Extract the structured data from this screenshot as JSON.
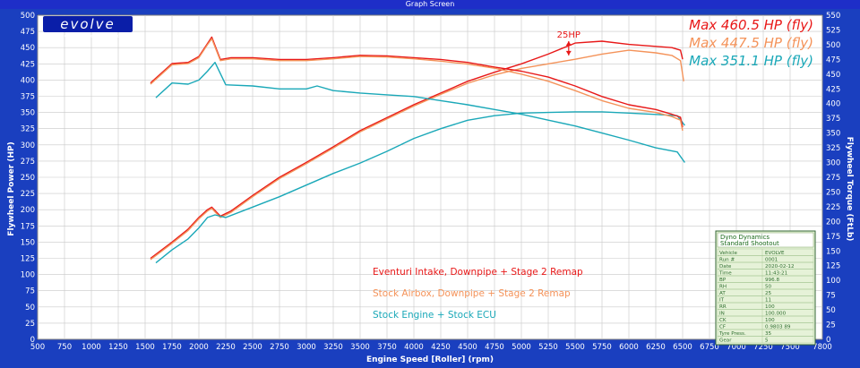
{
  "window": {
    "title": "Graph Screen"
  },
  "logo": {
    "brand": "evolve",
    "url": "www.evolveautomotive.com"
  },
  "chart_data": {
    "type": "line",
    "title": "",
    "xlabel": "Engine Speed [Roller] (rpm)",
    "ylabel": "Flywheel Power (HP)",
    "y2label": "Flywheel Torque (FtLb)",
    "xlim": [
      500,
      7800
    ],
    "ylim": [
      0,
      500
    ],
    "y2lim": [
      0,
      550
    ],
    "x_ticks": [
      500,
      750,
      1000,
      1250,
      1500,
      1750,
      2000,
      2250,
      2500,
      2750,
      3000,
      3250,
      3500,
      3750,
      4000,
      4250,
      4500,
      4750,
      5000,
      5250,
      5500,
      5750,
      6000,
      6250,
      6500,
      6750,
      7000,
      7250,
      7500,
      7800
    ],
    "y_ticks": [
      0,
      25,
      50,
      75,
      100,
      125,
      150,
      175,
      200,
      225,
      250,
      275,
      300,
      325,
      350,
      375,
      400,
      425,
      450,
      475,
      500
    ],
    "y2_ticks": [
      0,
      25,
      50,
      75,
      100,
      125,
      150,
      175,
      200,
      225,
      250,
      275,
      300,
      325,
      350,
      375,
      400,
      425,
      450,
      475,
      500,
      525,
      550
    ],
    "grid": true,
    "legend_position": "bottom-center",
    "max_labels": [
      {
        "text": "Max 460.5 HP (fly)",
        "color": "#e81818"
      },
      {
        "text": "Max 447.5 HP (fly)",
        "color": "#f4935a"
      },
      {
        "text": "Max 351.1 HP (fly)",
        "color": "#1aa8b8"
      }
    ],
    "annotation": {
      "text": "25HP",
      "x": 5440,
      "y_top": 460,
      "y_bottom": 438
    },
    "series": [
      {
        "name": "Eventuri Intake, Downpipe + Stage 2 Remap",
        "color": "#e81818",
        "metric": "power",
        "x": [
          1550,
          1750,
          1900,
          2000,
          2080,
          2120,
          2200,
          2300,
          2500,
          2750,
          3000,
          3250,
          3500,
          3750,
          4000,
          4250,
          4500,
          4750,
          5000,
          5250,
          5500,
          5750,
          6000,
          6250,
          6400,
          6480,
          6500
        ],
        "y": [
          125,
          150,
          170,
          188,
          200,
          204,
          190,
          198,
          222,
          250,
          273,
          297,
          322,
          342,
          362,
          380,
          398,
          412,
          425,
          440,
          457,
          460,
          455,
          452,
          450,
          446,
          432
        ]
      },
      {
        "name": "Stock Airbox, Downpipe + Stage 2 Remap",
        "color": "#f4935a",
        "metric": "power",
        "x": [
          1550,
          1750,
          1900,
          2000,
          2080,
          2120,
          2200,
          2300,
          2500,
          2750,
          3000,
          3250,
          3500,
          3750,
          4000,
          4250,
          4500,
          4750,
          5000,
          5250,
          5500,
          5750,
          6000,
          6250,
          6400,
          6480,
          6510
        ],
        "y": [
          123,
          148,
          168,
          186,
          198,
          202,
          188,
          196,
          220,
          248,
          271,
          295,
          320,
          340,
          360,
          378,
          395,
          408,
          418,
          425,
          432,
          440,
          446,
          442,
          438,
          430,
          398
        ]
      },
      {
        "name": "Stock Engine + Stock ECU",
        "color": "#1aa8b8",
        "metric": "power",
        "x": [
          1600,
          1750,
          1900,
          2000,
          2080,
          2150,
          2250,
          2500,
          2750,
          3000,
          3250,
          3500,
          3750,
          4000,
          4250,
          4500,
          4750,
          5000,
          5250,
          5500,
          5750,
          6000,
          6250,
          6450,
          6520
        ],
        "y": [
          118,
          138,
          155,
          172,
          188,
          192,
          188,
          204,
          220,
          238,
          256,
          272,
          290,
          310,
          325,
          338,
          345,
          349,
          350,
          351,
          351,
          349,
          347,
          345,
          330
        ]
      },
      {
        "name": "",
        "color": "#e81818",
        "metric": "torque",
        "x": [
          1550,
          1750,
          1900,
          2000,
          2080,
          2120,
          2200,
          2300,
          2500,
          2750,
          3000,
          3250,
          3500,
          3750,
          4000,
          4250,
          4500,
          4750,
          5000,
          5250,
          5500,
          5750,
          6000,
          6250,
          6400,
          6480,
          6500
        ],
        "y": [
          435,
          468,
          470,
          480,
          502,
          513,
          475,
          478,
          478,
          475,
          475,
          478,
          482,
          481,
          478,
          475,
          470,
          462,
          455,
          445,
          430,
          412,
          398,
          390,
          382,
          377,
          360
        ]
      },
      {
        "name": "",
        "color": "#f4935a",
        "metric": "torque",
        "x": [
          1550,
          1750,
          1900,
          2000,
          2080,
          2120,
          2200,
          2300,
          2500,
          2750,
          3000,
          3250,
          3500,
          3750,
          4000,
          4250,
          4500,
          4750,
          5000,
          5250,
          5500,
          5750,
          6000,
          6250,
          6400,
          6480,
          6500
        ],
        "y": [
          433,
          466,
          468,
          478,
          500,
          510,
          473,
          476,
          476,
          473,
          473,
          476,
          480,
          479,
          476,
          472,
          467,
          460,
          450,
          438,
          422,
          405,
          392,
          385,
          378,
          372,
          354
        ]
      },
      {
        "name": "",
        "color": "#1aa8b8",
        "metric": "torque",
        "x": [
          1600,
          1750,
          1900,
          2000,
          2080,
          2150,
          2250,
          2500,
          2750,
          3000,
          3100,
          3250,
          3500,
          3750,
          4000,
          4250,
          4500,
          4750,
          5000,
          5250,
          5500,
          5750,
          6000,
          6250,
          6450,
          6520
        ],
        "y": [
          410,
          435,
          433,
          440,
          455,
          470,
          432,
          430,
          425,
          425,
          430,
          422,
          418,
          415,
          412,
          405,
          398,
          390,
          382,
          372,
          362,
          350,
          338,
          325,
          318,
          300
        ]
      }
    ]
  },
  "info_box": {
    "header_line1": "Dyno Dynamics",
    "header_line2": "Standard Shootout",
    "rows": [
      [
        "Vehicle",
        "EVOLVE"
      ],
      [
        "Run #",
        "0001"
      ],
      [
        "Date",
        "2020-02-12"
      ],
      [
        "Time",
        "11:43:21"
      ],
      [
        "BP",
        "996.8"
      ],
      [
        "RH",
        "50"
      ],
      [
        "AT",
        "25"
      ],
      [
        "IT",
        "11"
      ],
      [
        "RR",
        "100"
      ],
      [
        "IN",
        "100.000"
      ],
      [
        "CK",
        "100"
      ],
      [
        "CF",
        "0.9803 89"
      ],
      [
        "Tyre Press.",
        "35"
      ],
      [
        "Gear",
        "5"
      ]
    ]
  }
}
